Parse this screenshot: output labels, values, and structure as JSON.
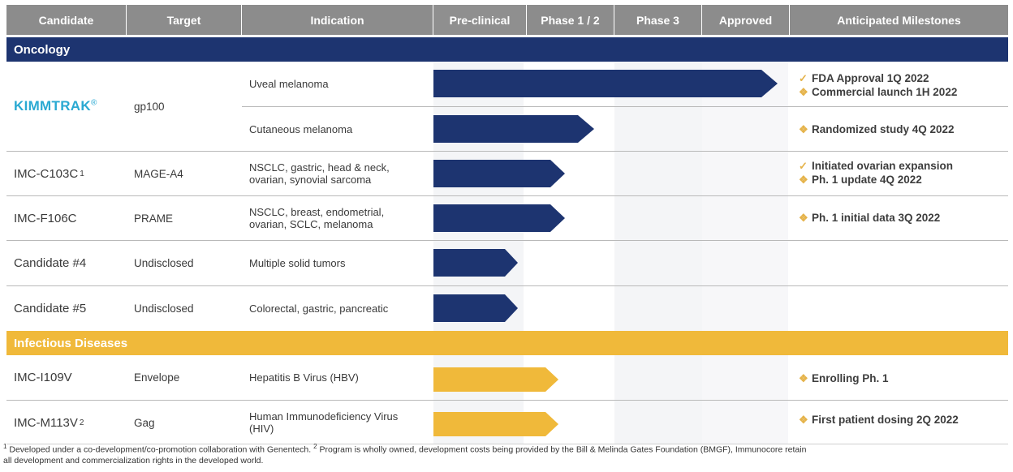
{
  "header": {
    "candidate": "Candidate",
    "target": "Target",
    "indication": "Indication",
    "preclinical": "Pre-clinical",
    "phase12": "Phase 1 / 2",
    "phase3": "Phase 3",
    "approved": "Approved",
    "milestones": "Anticipated Milestones"
  },
  "sections": {
    "oncology": "Oncology",
    "infectious": "Infectious Diseases"
  },
  "rows": {
    "kimmtrak": {
      "name": "KIMMTRAK",
      "reg": "®",
      "target": "gp100",
      "ind1": "Uveal melanoma",
      "ind2": "Cutaneous melanoma"
    },
    "c103c": {
      "name": "IMC-C103C",
      "fn": "1",
      "target": "MAGE-A4",
      "ind_l1": "NSCLC, gastric, head & neck,",
      "ind_l2": "ovarian, synovial sarcoma"
    },
    "f106c": {
      "name": "IMC-F106C",
      "target": "PRAME",
      "ind_l1": "NSCLC, breast, endometrial,",
      "ind_l2": "ovarian, SCLC, melanoma"
    },
    "c4": {
      "name": "Candidate #4",
      "target": "Undisclosed",
      "ind": "Multiple solid tumors"
    },
    "c5": {
      "name": "Candidate #5",
      "target": "Undisclosed",
      "ind": "Colorectal, gastric, pancreatic"
    },
    "i109v": {
      "name": "IMC-I109V",
      "target": "Envelope",
      "ind": "Hepatitis B Virus (HBV)"
    },
    "m113v": {
      "name": "IMC-M113V",
      "fn": "2",
      "target": "Gag",
      "ind_l1": "Human Immunodeficiency Virus",
      "ind_l2": "(HIV)"
    }
  },
  "milestones": {
    "kimm_uveal_1": {
      "icon": "check-icon",
      "text": "FDA Approval 1Q 2022"
    },
    "kimm_uveal_2": {
      "icon": "diamond-icon",
      "text": "Commercial launch 1H 2022"
    },
    "kimm_cut": {
      "icon": "diamond-icon",
      "text": "Randomized study 4Q 2022"
    },
    "c103c_1": {
      "icon": "check-icon",
      "text": "Initiated ovarian expansion"
    },
    "c103c_2": {
      "icon": "diamond-icon",
      "text": "Ph. 1 update 4Q 2022"
    },
    "f106c": {
      "icon": "diamond-icon",
      "text": "Ph. 1 initial data 3Q 2022"
    },
    "i109v": {
      "icon": "diamond-icon",
      "text": "Enrolling Ph. 1"
    },
    "m113v": {
      "icon": "diamond-icon",
      "text": "First patient dosing 2Q 2022"
    }
  },
  "footnote": {
    "fn1_mark": "1",
    "fn1": " Developed under a co-development/co-promotion collaboration with Genentech. ",
    "fn2_mark": "2",
    "fn2": " Program is wholly owned, development costs being provided by the Bill & Melinda Gates Foundation (BMGF), Immunocore retain",
    "fn2_cont": "all development and commercialization rights in the developed world."
  },
  "colors": {
    "header": "#8c8c8c",
    "oncology": "#1d3470",
    "infectious": "#f0b93a",
    "kimmtrak": "#2aa9d2",
    "milestone_icon": "#e5b34a"
  },
  "progress": {
    "kimm_uveal": "approved",
    "kimm_cut": "phase 1/2",
    "c103c": "phase 1/2",
    "f106c": "phase 1/2",
    "c4": "pre-clinical",
    "c5": "pre-clinical",
    "i109v": "phase 1/2",
    "m113v": "phase 1/2"
  }
}
